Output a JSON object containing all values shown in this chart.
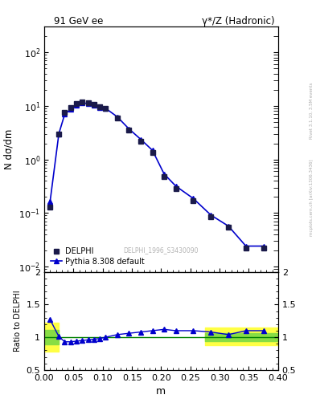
{
  "title_left": "91 GeV ee",
  "title_right": "γ*/Z (Hadronic)",
  "ylabel_main": "N dσ/dm",
  "xlabel": "m",
  "ylabel_ratio": "Ratio to DELPHI",
  "watermark": "DELPHI_1996_S3430090",
  "right_label": "Rivet 3.1.10, 3.5M events",
  "right_label2": "mcplots.cern.ch [arXiv:1306.3436]",
  "data_x": [
    0.01,
    0.025,
    0.035,
    0.045,
    0.055,
    0.065,
    0.075,
    0.085,
    0.095,
    0.105,
    0.125,
    0.145,
    0.165,
    0.185,
    0.205,
    0.225,
    0.255,
    0.285,
    0.315,
    0.345,
    0.375
  ],
  "data_y": [
    0.13,
    3.0,
    7.5,
    9.2,
    11.0,
    12.0,
    11.5,
    10.5,
    9.5,
    9.0,
    6.0,
    3.5,
    2.2,
    1.35,
    0.48,
    0.29,
    0.17,
    0.085,
    0.055,
    0.022,
    0.022
  ],
  "mc_x": [
    0.01,
    0.025,
    0.035,
    0.045,
    0.055,
    0.065,
    0.075,
    0.085,
    0.095,
    0.105,
    0.125,
    0.145,
    0.165,
    0.185,
    0.205,
    0.225,
    0.255,
    0.285,
    0.315,
    0.345,
    0.375
  ],
  "mc_y": [
    0.165,
    3.03,
    6.97,
    8.56,
    10.34,
    11.4,
    11.04,
    10.19,
    9.31,
    9.0,
    6.24,
    3.71,
    2.38,
    1.485,
    0.538,
    0.319,
    0.187,
    0.0918,
    0.0572,
    0.0242,
    0.0242
  ],
  "ratio_x": [
    0.01,
    0.025,
    0.035,
    0.045,
    0.055,
    0.065,
    0.075,
    0.085,
    0.095,
    0.105,
    0.125,
    0.145,
    0.165,
    0.185,
    0.205,
    0.225,
    0.255,
    0.285,
    0.315,
    0.345,
    0.375
  ],
  "ratio_y": [
    1.27,
    1.01,
    0.93,
    0.93,
    0.94,
    0.95,
    0.96,
    0.97,
    0.98,
    1.0,
    1.04,
    1.06,
    1.08,
    1.1,
    1.12,
    1.1,
    1.1,
    1.08,
    1.04,
    1.1,
    1.1
  ],
  "band_yellow_1": [
    0.0,
    0.025,
    0.78,
    1.22
  ],
  "band_yellow_2": [
    0.275,
    0.4,
    0.88,
    1.15
  ],
  "band_green_1": [
    0.0,
    0.025,
    0.89,
    1.11
  ],
  "band_green_2": [
    0.275,
    0.4,
    0.94,
    1.06
  ],
  "xlim": [
    0.0,
    0.4
  ],
  "ylim_main": [
    0.008,
    300
  ],
  "ylim_ratio": [
    0.5,
    2.0
  ],
  "data_color": "#1a1a4a",
  "mc_color": "#0000cc",
  "ratio_line_color": "#0000cc",
  "ref_line_color": "#008000",
  "yellow_color": "#ffff44",
  "green_color": "#88dd44",
  "background_color": "#ffffff",
  "gray_text": "#aaaaaa"
}
